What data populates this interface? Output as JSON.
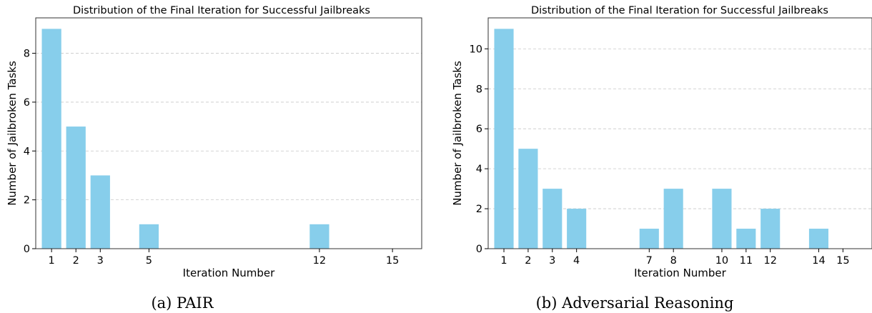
{
  "chart_data": [
    {
      "type": "bar",
      "title": "Distribution of the Final Iteration for Successful Jailbreaks",
      "xlabel": "Iteration Number",
      "ylabel": "Number of Jailbroken Tasks",
      "caption": "(a) PAIR",
      "x": [
        1,
        2,
        3,
        5,
        12,
        15
      ],
      "values": [
        9,
        5,
        3,
        1,
        1,
        0
      ],
      "xticks": [
        1,
        2,
        3,
        5,
        12,
        15
      ],
      "yticks": [
        0,
        2,
        4,
        6,
        8
      ],
      "xlim": [
        0.35,
        16.2
      ],
      "ylim": [
        0,
        9.45
      ],
      "grid": "y-dashed",
      "bar_color": "#87ceeb"
    },
    {
      "type": "bar",
      "title": "Distribution of the Final Iteration for Successful Jailbreaks",
      "xlabel": "Iteration Number",
      "ylabel": "Number of Jailbroken Tasks",
      "caption": "(b) Adversarial Reasoning",
      "x": [
        1,
        2,
        3,
        4,
        7,
        8,
        10,
        11,
        12,
        14,
        15
      ],
      "values": [
        11,
        5,
        3,
        2,
        1,
        3,
        3,
        1,
        2,
        1,
        0
      ],
      "xticks": [
        1,
        2,
        3,
        4,
        7,
        8,
        10,
        11,
        12,
        14,
        15
      ],
      "yticks": [
        0,
        2,
        4,
        6,
        8,
        10
      ],
      "xlim": [
        0.35,
        16.2
      ],
      "ylim": [
        0,
        11.55
      ],
      "grid": "y-dashed",
      "bar_color": "#87ceeb"
    }
  ]
}
